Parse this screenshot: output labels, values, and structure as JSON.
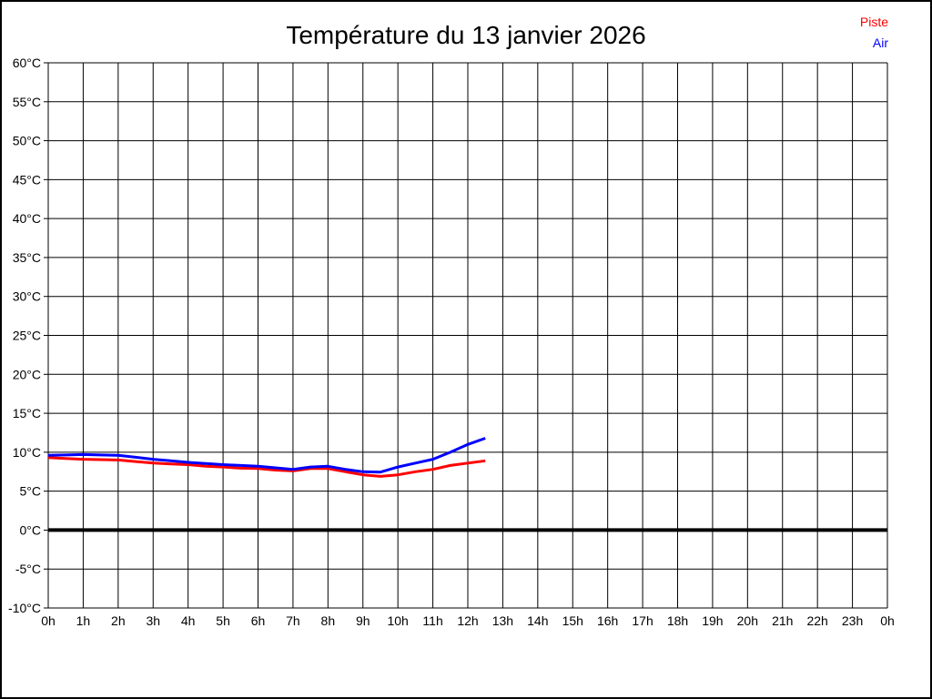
{
  "title": "Température du 13 janvier 2026",
  "legend": [
    {
      "label": "Piste",
      "color": "#ff0000"
    },
    {
      "label": "Air",
      "color": "#0000ff"
    }
  ],
  "chart_data": {
    "type": "line",
    "title": "Température du 13 janvier 2026",
    "xlabel": "",
    "ylabel": "",
    "x_unit": "h",
    "y_unit": "°C",
    "xlim": [
      0,
      24
    ],
    "ylim": [
      -10,
      60
    ],
    "grid": true,
    "legend_position": "top-right",
    "x_tick_labels": [
      "0h",
      "1h",
      "2h",
      "3h",
      "4h",
      "5h",
      "6h",
      "7h",
      "8h",
      "9h",
      "10h",
      "11h",
      "12h",
      "13h",
      "14h",
      "15h",
      "16h",
      "17h",
      "18h",
      "19h",
      "20h",
      "21h",
      "22h",
      "23h",
      "0h"
    ],
    "y_tick_labels": [
      "60°C",
      "55°C",
      "50°C",
      "45°C",
      "40°C",
      "35°C",
      "30°C",
      "25°C",
      "20°C",
      "15°C",
      "10°C",
      "5°C",
      "0°C",
      "-5°C",
      "-10°C"
    ],
    "y_tick_values": [
      60,
      55,
      50,
      45,
      40,
      35,
      30,
      25,
      20,
      15,
      10,
      5,
      0,
      -5,
      -10
    ],
    "zero_line": {
      "value": 0,
      "color": "#000000",
      "width": 4
    },
    "grid_color": "#000000",
    "x": [
      0,
      0.5,
      1,
      1.5,
      2,
      2.5,
      3,
      3.5,
      4,
      4.5,
      5,
      5.5,
      6,
      6.5,
      7,
      7.5,
      8,
      8.5,
      9,
      9.5,
      10,
      10.5,
      11,
      11.5,
      12,
      12.5
    ],
    "series": [
      {
        "name": "Piste",
        "color": "#ff0000",
        "values": [
          9.3,
          9.2,
          9.1,
          9.05,
          9.0,
          8.8,
          8.6,
          8.5,
          8.4,
          8.2,
          8.1,
          7.95,
          7.9,
          7.7,
          7.6,
          7.9,
          7.9,
          7.5,
          7.1,
          6.9,
          7.1,
          7.5,
          7.8,
          8.3,
          8.6,
          8.9
        ]
      },
      {
        "name": "Air",
        "color": "#0000ff",
        "values": [
          9.6,
          9.65,
          9.7,
          9.65,
          9.6,
          9.35,
          9.1,
          8.9,
          8.7,
          8.55,
          8.4,
          8.3,
          8.2,
          8.0,
          7.8,
          8.1,
          8.2,
          7.8,
          7.5,
          7.45,
          8.1,
          8.6,
          9.1,
          10.0,
          11.0,
          11.8
        ]
      }
    ]
  }
}
